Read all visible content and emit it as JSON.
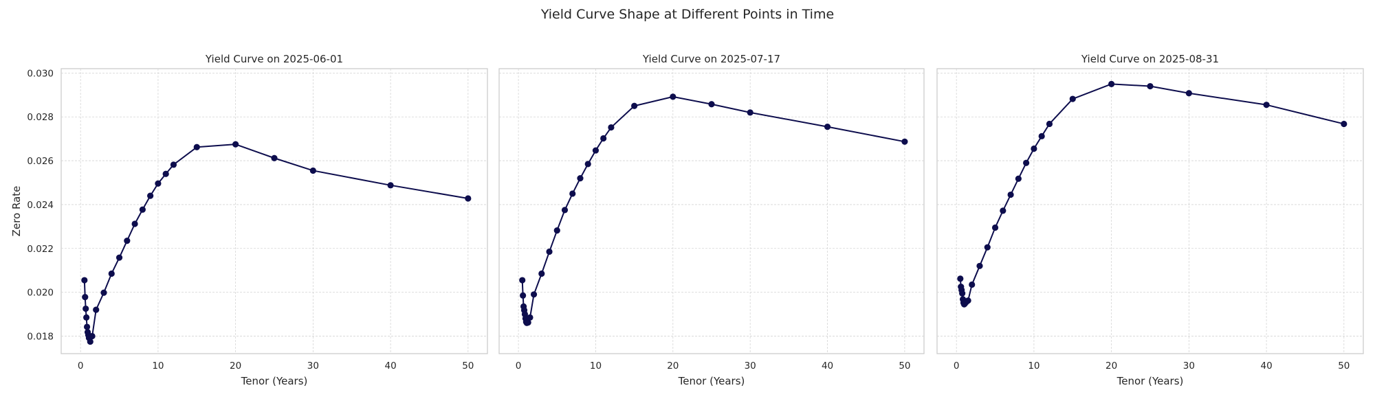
{
  "figure_title": "Yield Curve Shape at Different Points in Time",
  "colors": {
    "line": "#0d0d4d",
    "marker": "#0d0d4d",
    "grid": "#d4d4d4",
    "frame": "#cccccc"
  },
  "chart_data": [
    {
      "type": "line",
      "title": "Yield Curve on 2025-06-01",
      "xlabel": "Tenor (Years)",
      "ylabel": "Zero Rate",
      "xlim": [
        -2.5,
        52.5
      ],
      "ylim": [
        0.0172,
        0.0302
      ],
      "xticks": [
        0,
        10,
        20,
        30,
        40,
        50
      ],
      "yticks": [
        0.018,
        0.02,
        0.022,
        0.024,
        0.026,
        0.028,
        0.03
      ],
      "grid": true,
      "series": [
        {
          "x": [
            0.5,
            0.583,
            0.667,
            0.75,
            0.833,
            0.917,
            1,
            1.083,
            1.25,
            1.5,
            2,
            3,
            4,
            5,
            6,
            7,
            8,
            9,
            10,
            11,
            12,
            15,
            20,
            25,
            30,
            40,
            50
          ],
          "y": [
            0.02055,
            0.01978,
            0.01925,
            0.01885,
            0.01842,
            0.01818,
            0.01805,
            0.01792,
            0.01775,
            0.018,
            0.0192,
            0.01998,
            0.02085,
            0.02158,
            0.02235,
            0.02312,
            0.02377,
            0.0244,
            0.02496,
            0.0254,
            0.02582,
            0.02662,
            0.02675,
            0.02612,
            0.02555,
            0.02488,
            0.02428
          ]
        }
      ]
    },
    {
      "type": "line",
      "title": "Yield Curve on 2025-07-17",
      "xlabel": "Tenor (Years)",
      "ylabel": "",
      "xlim": [
        -2.5,
        52.5
      ],
      "ylim": [
        0.0172,
        0.0302
      ],
      "xticks": [
        0,
        10,
        20,
        30,
        40,
        50
      ],
      "yticks": [
        0.018,
        0.02,
        0.022,
        0.024,
        0.026,
        0.028,
        0.03
      ],
      "grid": true,
      "series": [
        {
          "x": [
            0.5,
            0.583,
            0.667,
            0.75,
            0.833,
            0.917,
            1,
            1.083,
            1.25,
            1.5,
            2,
            3,
            4,
            5,
            6,
            7,
            8,
            9,
            10,
            11,
            12,
            15,
            20,
            25,
            30,
            40,
            50
          ],
          "y": [
            0.02055,
            0.01985,
            0.01935,
            0.01918,
            0.019,
            0.0188,
            0.01865,
            0.0186,
            0.01862,
            0.01885,
            0.0199,
            0.02085,
            0.02185,
            0.02282,
            0.02375,
            0.0245,
            0.0252,
            0.02585,
            0.02647,
            0.02702,
            0.02752,
            0.0285,
            0.02892,
            0.02858,
            0.0282,
            0.02755,
            0.02687
          ]
        }
      ]
    },
    {
      "type": "line",
      "title": "Yield Curve on 2025-08-31",
      "xlabel": "Tenor (Years)",
      "ylabel": "",
      "xlim": [
        -2.5,
        52.5
      ],
      "ylim": [
        0.0172,
        0.0302
      ],
      "xticks": [
        0,
        10,
        20,
        30,
        40,
        50
      ],
      "yticks": [
        0.018,
        0.02,
        0.022,
        0.024,
        0.026,
        0.028,
        0.03
      ],
      "grid": true,
      "series": [
        {
          "x": [
            0.5,
            0.583,
            0.667,
            0.75,
            0.833,
            0.917,
            1,
            1.083,
            1.25,
            1.5,
            2,
            3,
            4,
            5,
            6,
            7,
            8,
            9,
            10,
            11,
            12,
            15,
            20,
            25,
            30,
            40,
            50
          ],
          "y": [
            0.02062,
            0.02025,
            0.0201,
            0.01995,
            0.01968,
            0.01952,
            0.01945,
            0.01948,
            0.01955,
            0.01962,
            0.02035,
            0.0212,
            0.02205,
            0.02295,
            0.02372,
            0.02445,
            0.02518,
            0.0259,
            0.02655,
            0.02712,
            0.02768,
            0.02882,
            0.0295,
            0.0294,
            0.02908,
            0.02855,
            0.02768
          ]
        }
      ]
    }
  ]
}
